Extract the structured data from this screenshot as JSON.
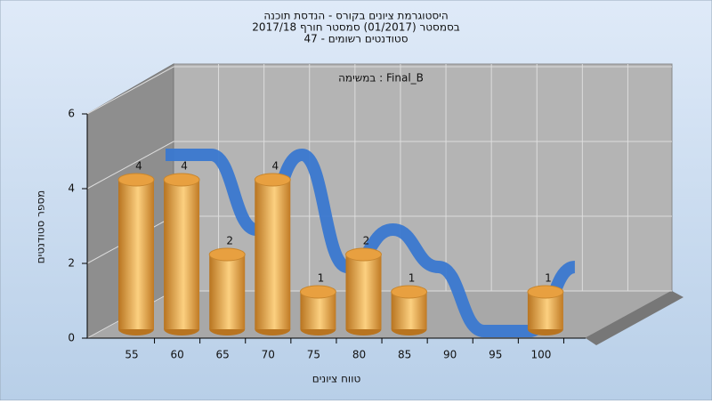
{
  "chart_data": {
    "type": "bar3d",
    "title": [
      "היסטוגרמת ציונים בקורס - הנדסת תוכנה",
      "בסמסטר  (01/2017)  סמסטר חורף 2017/18",
      "סטודנטים רשומים - 47"
    ],
    "annotation": "במשימה : Final_B",
    "x_label": "טווח ציונים",
    "y_label": "מספר סטודנטים",
    "categories": [
      "55",
      "60",
      "65",
      "70",
      "75",
      "80",
      "85",
      "90",
      "95",
      "100"
    ],
    "values": [
      4,
      4,
      2,
      4,
      1,
      2,
      1,
      0,
      0,
      1
    ],
    "color": "#e8a040",
    "line_color": "#3a78d0",
    "ylim": [
      0,
      6
    ],
    "yticks": [
      0,
      2,
      4,
      6
    ],
    "grid": true
  }
}
